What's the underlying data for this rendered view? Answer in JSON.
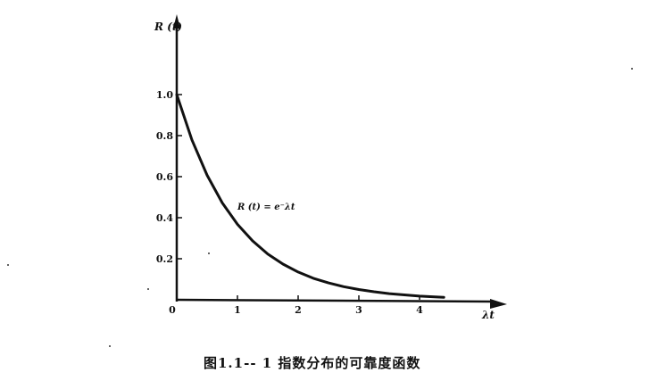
{
  "chart_data": {
    "type": "line",
    "title": "",
    "caption": "图1.1-- 1  指数分布的可靠度函数",
    "ylabel": "R (t)",
    "xlabel": "λt",
    "xlim": [
      0,
      5.2
    ],
    "ylim": [
      0,
      1.4
    ],
    "x_ticks": [
      {
        "value": 0,
        "label": "0"
      },
      {
        "value": 1,
        "label": "1"
      },
      {
        "value": 2,
        "label": "2"
      },
      {
        "value": 3,
        "label": "3"
      },
      {
        "value": 4,
        "label": "4"
      }
    ],
    "y_ticks": [
      {
        "value": 0.2,
        "label": "0.2"
      },
      {
        "value": 0.4,
        "label": "0.4"
      },
      {
        "value": 0.6,
        "label": "0.6"
      },
      {
        "value": 0.8,
        "label": "0.8"
      },
      {
        "value": 1.0,
        "label": "1.0"
      }
    ],
    "annotation": {
      "text": "R (t) = e⁻λt",
      "x": 1.0,
      "y": 0.44
    },
    "series": [
      {
        "x": [
          0,
          0.25,
          0.5,
          0.75,
          1.0,
          1.25,
          1.5,
          1.75,
          2.0,
          2.25,
          2.5,
          2.75,
          3.0,
          3.25,
          3.5,
          3.75,
          4.0,
          4.25,
          4.4
        ],
        "values": [
          1.0,
          0.779,
          0.607,
          0.472,
          0.368,
          0.287,
          0.223,
          0.174,
          0.135,
          0.105,
          0.082,
          0.064,
          0.05,
          0.039,
          0.03,
          0.024,
          0.018,
          0.014,
          0.012
        ]
      }
    ],
    "grid": false,
    "legend": "none",
    "line_color": "#111111"
  }
}
